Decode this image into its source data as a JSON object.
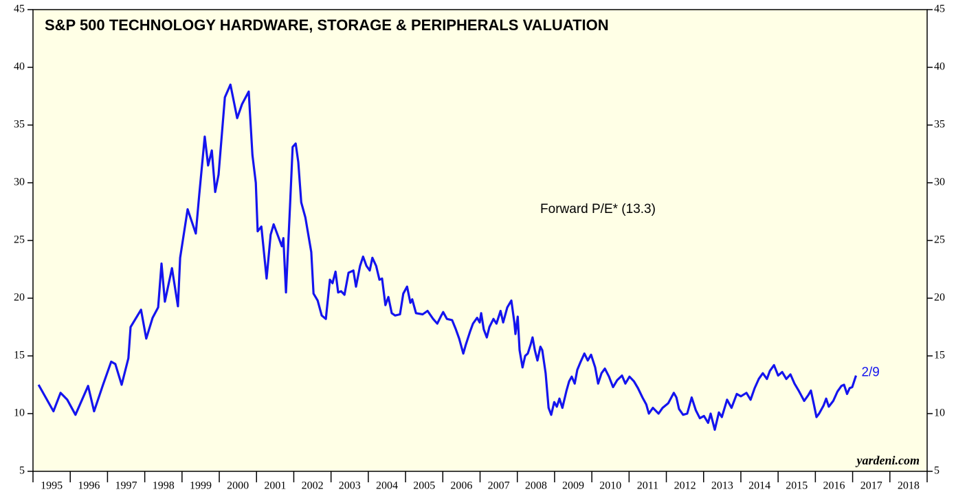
{
  "chart_data": {
    "type": "line",
    "title": "S&P 500 TECHNOLOGY HARDWARE, STORAGE & PERIPHERALS VALUATION",
    "annotation": "Forward P/E* (13.3)",
    "end_label": "2/9",
    "source": "yardeni.com",
    "xlim": [
      1995,
      2019
    ],
    "xticks": [
      1995,
      1996,
      1997,
      1998,
      1999,
      2000,
      2001,
      2002,
      2003,
      2004,
      2005,
      2006,
      2007,
      2008,
      2009,
      2010,
      2011,
      2012,
      2013,
      2014,
      2015,
      2016,
      2017,
      2018,
      2019
    ],
    "year_labels": [
      1995,
      1996,
      1997,
      1998,
      1999,
      2000,
      2001,
      2002,
      2003,
      2004,
      2005,
      2006,
      2007,
      2008,
      2009,
      2010,
      2011,
      2012,
      2013,
      2014,
      2015,
      2016,
      2017,
      2018
    ],
    "ylim": [
      5,
      45
    ],
    "yticks": [
      5,
      10,
      15,
      20,
      25,
      30,
      35,
      40,
      45
    ],
    "y2lim": [
      5,
      45
    ],
    "y2ticks": [
      5,
      10,
      15,
      20,
      25,
      30,
      35,
      40,
      45
    ],
    "series": [
      {
        "name": "Forward P/E",
        "color": "#1414ee",
        "x": [
          1995.15,
          1995.55,
          1995.74,
          1995.92,
          1996.14,
          1996.48,
          1996.64,
          1996.88,
          1997.1,
          1997.21,
          1997.38,
          1997.56,
          1997.62,
          1997.9,
          1998.04,
          1998.21,
          1998.36,
          1998.45,
          1998.54,
          1998.73,
          1998.89,
          1998.95,
          1999.15,
          1999.37,
          1999.46,
          1999.61,
          1999.7,
          1999.8,
          1999.89,
          1999.98,
          2000.15,
          2000.3,
          2000.48,
          2000.61,
          2000.79,
          2000.89,
          2000.98,
          2001.03,
          2001.13,
          2001.27,
          2001.38,
          2001.46,
          2001.68,
          2001.72,
          2001.79,
          2001.9,
          2001.97,
          2002.05,
          2002.12,
          2002.2,
          2002.31,
          2002.47,
          2002.53,
          2002.64,
          2002.75,
          2002.86,
          2002.97,
          2003.04,
          2003.12,
          2003.19,
          2003.27,
          2003.36,
          2003.47,
          2003.6,
          2003.67,
          2003.78,
          2003.86,
          2003.95,
          2004.04,
          2004.11,
          2004.21,
          2004.3,
          2004.37,
          2004.46,
          2004.54,
          2004.63,
          2004.72,
          2004.85,
          2004.94,
          2005.04,
          2005.13,
          2005.18,
          2005.28,
          2005.46,
          2005.59,
          2005.74,
          2005.85,
          2005.96,
          2006.01,
          2006.11,
          2006.25,
          2006.35,
          2006.44,
          2006.55,
          2006.62,
          2006.73,
          2006.81,
          2006.92,
          2006.99,
          2007.03,
          2007.1,
          2007.18,
          2007.25,
          2007.36,
          2007.44,
          2007.55,
          2007.62,
          2007.73,
          2007.84,
          2007.92,
          2007.95,
          2008.01,
          2008.06,
          2008.14,
          2008.21,
          2008.28,
          2008.36,
          2008.41,
          2008.47,
          2008.54,
          2008.62,
          2008.67,
          2008.76,
          2008.84,
          2008.91,
          2008.99,
          2009.06,
          2009.13,
          2009.21,
          2009.32,
          2009.39,
          2009.46,
          2009.54,
          2009.61,
          2009.7,
          2009.8,
          2009.89,
          2009.98,
          2010.09,
          2010.17,
          2010.26,
          2010.35,
          2010.46,
          2010.57,
          2010.68,
          2010.81,
          2010.9,
          2011.01,
          2011.13,
          2011.24,
          2011.36,
          2011.46,
          2011.53,
          2011.64,
          2011.79,
          2011.9,
          2012.05,
          2012.2,
          2012.27,
          2012.34,
          2012.45,
          2012.56,
          2012.68,
          2012.79,
          2012.9,
          2013.01,
          2013.12,
          2013.19,
          2013.3,
          2013.41,
          2013.49,
          2013.63,
          2013.75,
          2013.89,
          2014.0,
          2014.15,
          2014.26,
          2014.37,
          2014.48,
          2014.59,
          2014.7,
          2014.78,
          2014.89,
          2015.0,
          2015.11,
          2015.22,
          2015.33,
          2015.44,
          2015.55,
          2015.7,
          2015.81,
          2015.88,
          2015.96,
          2016.03,
          2016.1,
          2016.22,
          2016.29,
          2016.36,
          2016.48,
          2016.59,
          2016.7,
          2016.77,
          2016.85,
          2016.92,
          2016.99,
          2017.09
        ],
        "values": [
          12.5,
          10.2,
          11.8,
          11.2,
          9.9,
          12.4,
          10.2,
          12.5,
          14.5,
          14.3,
          12.5,
          14.8,
          17.5,
          19.0,
          16.5,
          18.3,
          19.2,
          23.0,
          19.7,
          22.6,
          19.3,
          23.5,
          27.7,
          25.6,
          28.9,
          34.0,
          31.5,
          32.8,
          29.2,
          30.7,
          37.4,
          38.5,
          35.6,
          36.8,
          37.9,
          32.4,
          30.0,
          25.8,
          26.2,
          21.7,
          25.5,
          26.4,
          24.5,
          25.2,
          20.5,
          28.0,
          33.1,
          33.4,
          31.8,
          28.3,
          27.0,
          24.0,
          20.4,
          19.8,
          18.5,
          18.2,
          21.6,
          21.3,
          22.3,
          20.5,
          20.6,
          20.3,
          22.2,
          22.4,
          21.0,
          22.8,
          23.6,
          22.8,
          22.4,
          23.5,
          22.8,
          21.6,
          21.7,
          19.4,
          20.1,
          18.7,
          18.5,
          18.6,
          20.4,
          21.0,
          19.6,
          19.9,
          18.7,
          18.6,
          18.9,
          18.2,
          17.8,
          18.5,
          18.8,
          18.2,
          18.1,
          17.3,
          16.5,
          15.2,
          16.0,
          17.1,
          17.8,
          18.3,
          17.9,
          18.7,
          17.3,
          16.6,
          17.5,
          18.2,
          17.8,
          18.9,
          17.9,
          19.2,
          19.8,
          17.9,
          16.9,
          18.4,
          15.5,
          14.0,
          15.0,
          15.2,
          16.0,
          16.6,
          15.5,
          14.6,
          15.8,
          15.5,
          13.5,
          10.5,
          9.9,
          11.0,
          10.6,
          11.3,
          10.5,
          12.0,
          12.8,
          13.2,
          12.6,
          13.8,
          14.5,
          15.2,
          14.6,
          15.1,
          14.0,
          12.6,
          13.5,
          13.9,
          13.2,
          12.3,
          12.9,
          13.3,
          12.6,
          13.2,
          12.8,
          12.2,
          11.4,
          10.8,
          10.0,
          10.5,
          10.0,
          10.5,
          10.9,
          11.8,
          11.4,
          10.4,
          9.9,
          10.0,
          11.4,
          10.3,
          9.6,
          9.8,
          9.2,
          10.0,
          8.6,
          10.1,
          9.7,
          11.2,
          10.5,
          11.7,
          11.5,
          11.8,
          11.2,
          12.2,
          13.0,
          13.5,
          13.0,
          13.7,
          14.2,
          13.3,
          13.6,
          13.0,
          13.4,
          12.6,
          12.0,
          11.1,
          11.6,
          12.0,
          10.8,
          9.7,
          10.0,
          10.7,
          11.3,
          10.6,
          11.1,
          11.9,
          12.4,
          12.5,
          11.7,
          12.2,
          12.3,
          13.3
        ]
      }
    ]
  }
}
